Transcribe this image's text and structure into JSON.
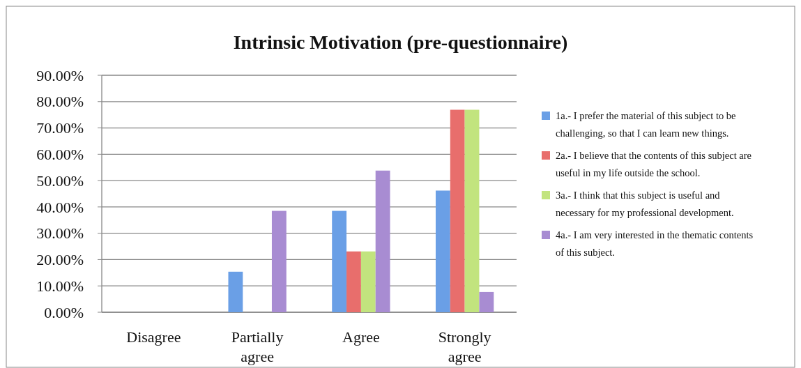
{
  "chart_data": {
    "type": "bar",
    "title": "Intrinsic Motivation (pre-questionnaire)",
    "categories": [
      "Disagree",
      "Partially agree",
      "Agree",
      "Strongly agree"
    ],
    "series": [
      {
        "name": "1a.- I prefer the material of this subject to be challenging, so that I can learn new things.",
        "color": "#6a9fe6",
        "values": [
          0,
          15.4,
          38.5,
          46.2
        ]
      },
      {
        "name": "2a.- I believe that the contents of this subject are useful in my life outside the school.",
        "color": "#e86e6c",
        "values": [
          0,
          0,
          23.1,
          76.9
        ]
      },
      {
        "name": "3a.- I think that this subject is useful and necessary for my professional development.",
        "color": "#c2e47e",
        "values": [
          0,
          0,
          23.1,
          76.9
        ]
      },
      {
        "name": "4a.- I am very interested in the thematic contents of this subject.",
        "color": "#a88cd2",
        "values": [
          0,
          38.5,
          53.8,
          7.7
        ]
      }
    ],
    "ylim": [
      0,
      90
    ],
    "yticks": [
      {
        "value": 0,
        "label": "0.00%"
      },
      {
        "value": 10,
        "label": "10.00%"
      },
      {
        "value": 20,
        "label": "20.00%"
      },
      {
        "value": 30,
        "label": "30.00%"
      },
      {
        "value": 40,
        "label": "40.00%"
      },
      {
        "value": 50,
        "label": "50.00%"
      },
      {
        "value": 60,
        "label": "60.00%"
      },
      {
        "value": 70,
        "label": "70.00%"
      },
      {
        "value": 80,
        "label": "80.00%"
      },
      {
        "value": 90,
        "label": "90.00%"
      }
    ],
    "grid": "y",
    "legend": "right"
  }
}
